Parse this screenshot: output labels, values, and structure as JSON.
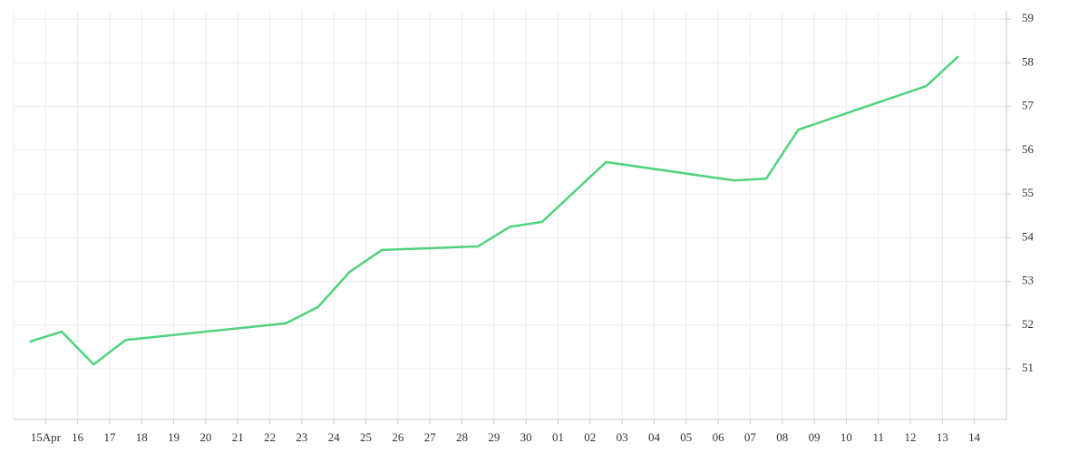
{
  "chart_data": {
    "type": "line",
    "x": [
      -0.5,
      0.5,
      1.5,
      2.5,
      7.5,
      8.5,
      9.5,
      10.5,
      13.5,
      14.5,
      15.5,
      17.5,
      21.5,
      22.5,
      23.5,
      27.5,
      28.5
    ],
    "series": [
      {
        "color": "#50d27c",
        "values": [
          51.62,
          51.85,
          51.1,
          51.66,
          52.04,
          52.41,
          53.22,
          53.72,
          53.8,
          54.25,
          54.36,
          55.73,
          55.31,
          55.35,
          56.47,
          57.47,
          58.15
        ]
      }
    ],
    "xlim": [
      -1,
      30
    ],
    "xticks": [
      {
        "value": 0,
        "label": "15Apr"
      },
      {
        "value": 1,
        "label": "16"
      },
      {
        "value": 2,
        "label": "17"
      },
      {
        "value": 3,
        "label": "18"
      },
      {
        "value": 4,
        "label": "19"
      },
      {
        "value": 5,
        "label": "20"
      },
      {
        "value": 6,
        "label": "21"
      },
      {
        "value": 7,
        "label": "22"
      },
      {
        "value": 8,
        "label": "23"
      },
      {
        "value": 9,
        "label": "24"
      },
      {
        "value": 10,
        "label": "25"
      },
      {
        "value": 11,
        "label": "26"
      },
      {
        "value": 12,
        "label": "27"
      },
      {
        "value": 13,
        "label": "28"
      },
      {
        "value": 14,
        "label": "29"
      },
      {
        "value": 15,
        "label": "30"
      },
      {
        "value": 16,
        "label": "01"
      },
      {
        "value": 17,
        "label": "02"
      },
      {
        "value": 18,
        "label": "03"
      },
      {
        "value": 19,
        "label": "04"
      },
      {
        "value": 20,
        "label": "05"
      },
      {
        "value": 21,
        "label": "06"
      },
      {
        "value": 22,
        "label": "07"
      },
      {
        "value": 23,
        "label": "08"
      },
      {
        "value": 24,
        "label": "09"
      },
      {
        "value": 25,
        "label": "10"
      },
      {
        "value": 26,
        "label": "11"
      },
      {
        "value": 27,
        "label": "12"
      },
      {
        "value": 28,
        "label": "13"
      },
      {
        "value": 29,
        "label": "14"
      }
    ],
    "ylim": [
      49.84,
      59.19
    ],
    "yticks": [
      51,
      52,
      53,
      54,
      55,
      56,
      57,
      58,
      59
    ],
    "grid": true
  }
}
